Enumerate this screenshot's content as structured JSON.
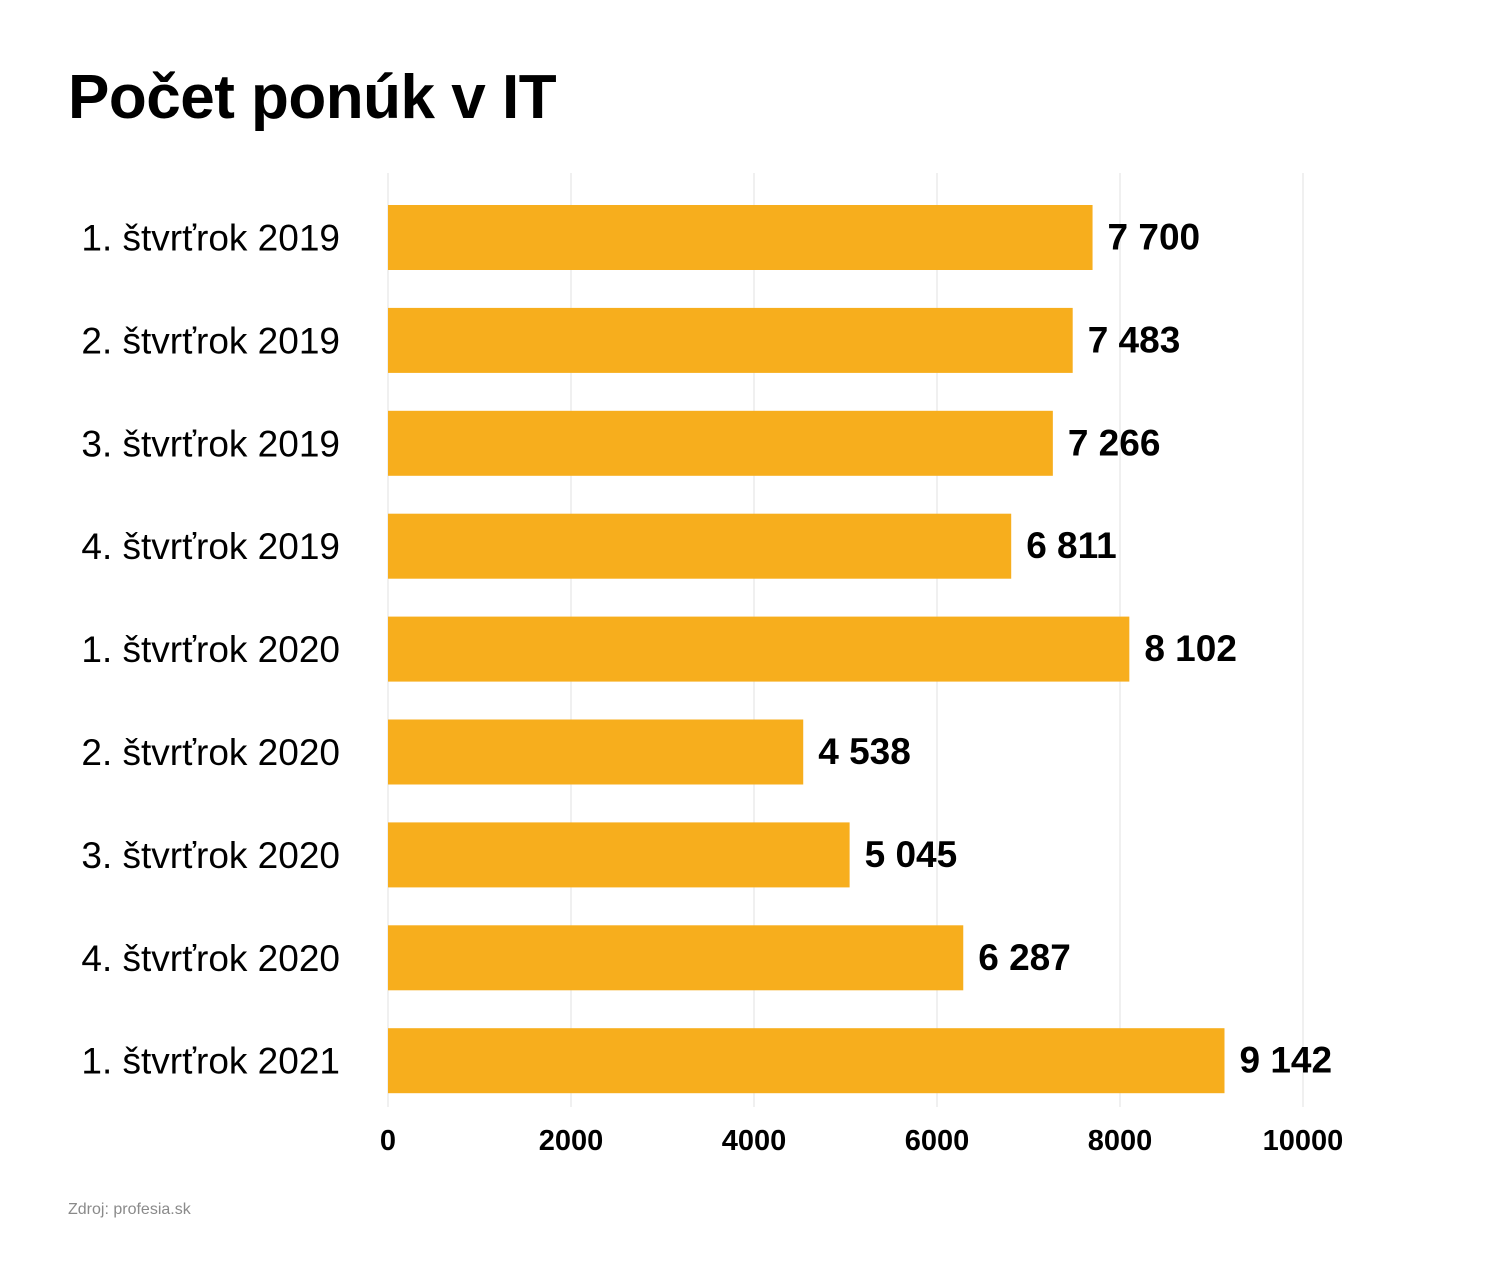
{
  "title": "Počet ponúk v IT",
  "source": "Zdroj: profesia.sk",
  "colors": {
    "bar": "#F7AE1D",
    "grid": "#e2e2e2",
    "text": "#000000",
    "source": "#8a8a8a"
  },
  "chart_data": {
    "type": "bar",
    "orientation": "horizontal",
    "title": "Počet ponúk v IT",
    "categories": [
      "1. štvrťrok 2019",
      "2. štvrťrok 2019",
      "3. štvrťrok 2019",
      "4. štvrťrok 2019",
      "1. štvrťrok 2020",
      "2. štvrťrok 2020",
      "3. štvrťrok 2020",
      "4. štvrťrok 2020",
      "1. štvrťrok 2021"
    ],
    "values": [
      7700,
      7483,
      7266,
      6811,
      8102,
      4538,
      5045,
      6287,
      9142
    ],
    "value_labels": [
      "7 700",
      "7 483",
      "7 266",
      "6 811",
      "8 102",
      "4 538",
      "5 045",
      "6 287",
      "9 142"
    ],
    "xlim": [
      0,
      10000
    ],
    "xticks": [
      0,
      2000,
      4000,
      6000,
      8000,
      10000
    ],
    "xtick_labels": [
      "0",
      "2000",
      "4000",
      "6000",
      "8000",
      "10000"
    ],
    "xlabel": "",
    "ylabel": "",
    "grid": true,
    "legend": false
  }
}
